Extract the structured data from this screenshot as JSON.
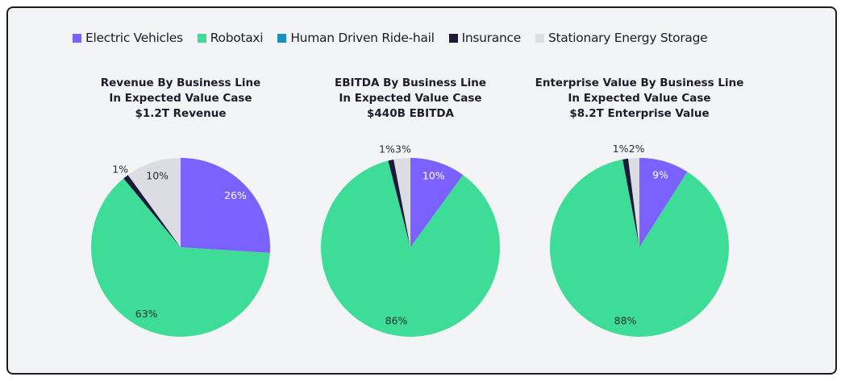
{
  "legend": [
    {
      "label": "Electric Vehicles",
      "color": "#7b61ff"
    },
    {
      "label": "Robotaxi",
      "color": "#3ddc97"
    },
    {
      "label": "Human Driven Ride-hail",
      "color": "#1b8fc4"
    },
    {
      "label": "Insurance",
      "color": "#1b1a3a"
    },
    {
      "label": "Stationary Energy Storage",
      "color": "#dcdde3"
    }
  ],
  "chart_data": [
    {
      "type": "pie",
      "title": [
        "Revenue By Business Line",
        "In Expected Value Case",
        "$1.2T Revenue"
      ],
      "categories": [
        "Electric Vehicles",
        "Robotaxi",
        "Human Driven Ride-hail",
        "Insurance",
        "Stationary Energy Storage"
      ],
      "values": [
        26,
        63,
        0,
        1,
        10
      ],
      "labels": [
        "26%",
        "63%",
        "",
        "1%",
        "10%"
      ]
    },
    {
      "type": "pie",
      "title": [
        "EBITDA By Business Line",
        "In Expected Value Case",
        "$440B EBITDA"
      ],
      "categories": [
        "Electric Vehicles",
        "Robotaxi",
        "Human Driven Ride-hail",
        "Insurance",
        "Stationary Energy Storage"
      ],
      "values": [
        10,
        86,
        0,
        1,
        3
      ],
      "labels": [
        "10%",
        "86%",
        "",
        "1%",
        "3%"
      ]
    },
    {
      "type": "pie",
      "title": [
        "Enterprise Value By Business Line",
        "In Expected Value Case",
        "$8.2T Enterprise Value"
      ],
      "categories": [
        "Electric Vehicles",
        "Robotaxi",
        "Human Driven Ride-hail",
        "Insurance",
        "Stationary Energy Storage"
      ],
      "values": [
        9,
        88,
        0,
        1,
        2
      ],
      "labels": [
        "9%",
        "88%",
        "",
        "1%",
        "2%"
      ]
    }
  ]
}
